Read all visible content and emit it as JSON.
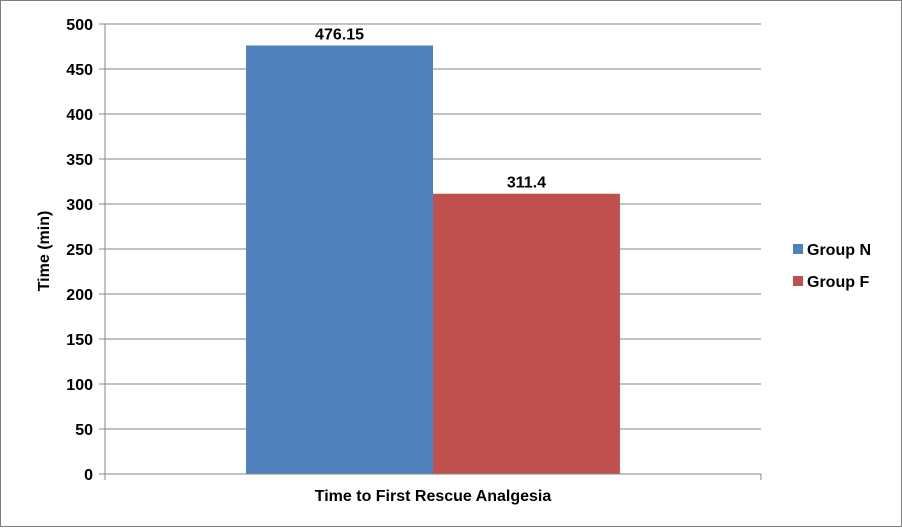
{
  "chart_data": {
    "type": "bar",
    "categories": [
      "Time to First Rescue Analgesia"
    ],
    "series": [
      {
        "name": "Group N",
        "values": [
          476.15
        ],
        "color": "#4F81BD"
      },
      {
        "name": "Group F",
        "values": [
          311.4
        ],
        "color": "#C0504D"
      }
    ],
    "data_labels": [
      "476.15",
      "311.4"
    ],
    "title": "",
    "xlabel": "Time to First Rescue Analgesia",
    "ylabel": "Time (min)",
    "ylim": [
      0,
      500
    ],
    "yticks": [
      "0",
      "50",
      "100",
      "150",
      "200",
      "250",
      "300",
      "350",
      "400",
      "450",
      "500"
    ],
    "grid": true,
    "legend": "right"
  }
}
